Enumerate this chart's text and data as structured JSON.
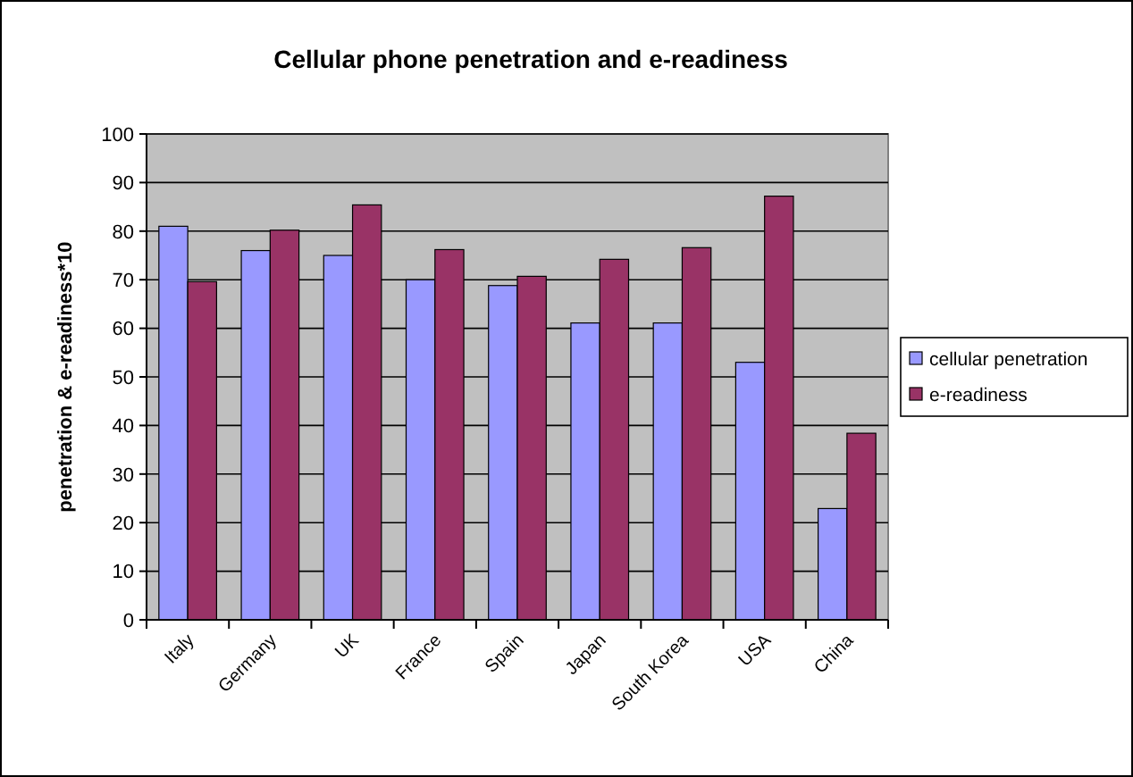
{
  "chart_data": {
    "type": "bar",
    "title": "Cellular phone penetration and e-readiness",
    "ylabel": "penetration & e-readiness*10",
    "categories": [
      "Italy",
      "Germany",
      "UK",
      "France",
      "Spain",
      "Japan",
      "South Korea",
      "USA",
      "China"
    ],
    "series": [
      {
        "name": "cellular penetration",
        "color": "#9999ff",
        "values": [
          81,
          76,
          75,
          70,
          68.8,
          61.1,
          61.1,
          53,
          22.9
        ]
      },
      {
        "name": "e-readiness",
        "color": "#993366",
        "values": [
          69.6,
          80.2,
          85.4,
          76.2,
          70.7,
          74.2,
          76.6,
          87.2,
          38.4
        ]
      }
    ],
    "ylim": [
      0,
      100
    ],
    "yticks": [
      0,
      10,
      20,
      30,
      40,
      50,
      60,
      70,
      80,
      90,
      100
    ],
    "grid": "y",
    "legend": "right"
  }
}
